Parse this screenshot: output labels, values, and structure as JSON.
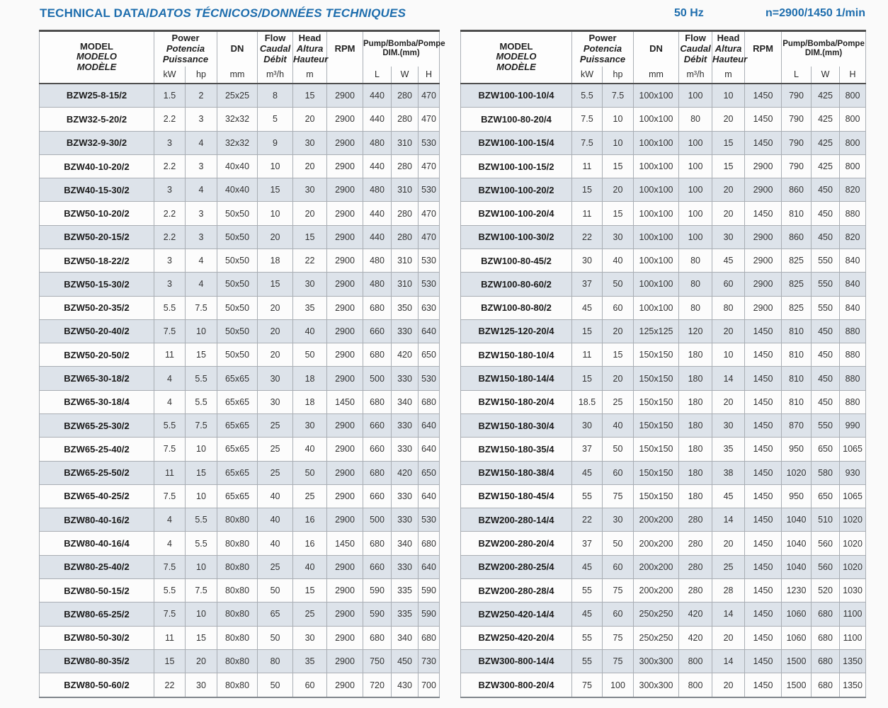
{
  "page": {
    "title_plain": "TECHNICAL DATA/",
    "title_italic": "DATOS TÉCNICOS/DONNÉES TECHNIQUES",
    "frequency": "50 Hz",
    "rotation": "n=2900/1450 1/min"
  },
  "colors": {
    "accent_blue": "#1d6dad",
    "row_shaded": "#dde3ea",
    "row_plain": "#fcfcfc",
    "border_dark": "#4f4f4f",
    "border_light": "#abb0b6"
  },
  "header": {
    "model": {
      "en": "MODEL",
      "es": "MODELO",
      "fr": "MODÈLE"
    },
    "power": {
      "en": "Power",
      "es": "Potencia",
      "fr": "Puissance",
      "unit_kw": "kW",
      "unit_hp": "hp"
    },
    "dn": {
      "label": "DN",
      "unit": "mm"
    },
    "flow": {
      "en": "Flow",
      "es": "Caudal",
      "fr": "Débit",
      "unit": "m³/h"
    },
    "head": {
      "en": "Head",
      "es": "Altura",
      "fr": "Hauteur",
      "unit": "m"
    },
    "rpm": {
      "label": "RPM"
    },
    "dim": {
      "en": "Pump/",
      "es_fr": "Bomba/Pompe",
      "line2": "DIM.(mm)",
      "unit_l": "L",
      "unit_w": "W",
      "unit_h": "H"
    }
  },
  "columns": [
    "MODEL",
    "Power kW",
    "Power hp",
    "DN mm",
    "Flow m³/h",
    "Head m",
    "RPM",
    "L mm",
    "W mm",
    "H mm"
  ],
  "tables": [
    {
      "rows": [
        [
          "BZW25-8-15/2",
          "1.5",
          "2",
          "25x25",
          "8",
          "15",
          "2900",
          "440",
          "280",
          "470"
        ],
        [
          "BZW32-5-20/2",
          "2.2",
          "3",
          "32x32",
          "5",
          "20",
          "2900",
          "440",
          "280",
          "470"
        ],
        [
          "BZW32-9-30/2",
          "3",
          "4",
          "32x32",
          "9",
          "30",
          "2900",
          "480",
          "310",
          "530"
        ],
        [
          "BZW40-10-20/2",
          "2.2",
          "3",
          "40x40",
          "10",
          "20",
          "2900",
          "440",
          "280",
          "470"
        ],
        [
          "BZW40-15-30/2",
          "3",
          "4",
          "40x40",
          "15",
          "30",
          "2900",
          "480",
          "310",
          "530"
        ],
        [
          "BZW50-10-20/2",
          "2.2",
          "3",
          "50x50",
          "10",
          "20",
          "2900",
          "440",
          "280",
          "470"
        ],
        [
          "BZW50-20-15/2",
          "2.2",
          "3",
          "50x50",
          "20",
          "15",
          "2900",
          "440",
          "280",
          "470"
        ],
        [
          "BZW50-18-22/2",
          "3",
          "4",
          "50x50",
          "18",
          "22",
          "2900",
          "480",
          "310",
          "530"
        ],
        [
          "BZW50-15-30/2",
          "3",
          "4",
          "50x50",
          "15",
          "30",
          "2900",
          "480",
          "310",
          "530"
        ],
        [
          "BZW50-20-35/2",
          "5.5",
          "7.5",
          "50x50",
          "20",
          "35",
          "2900",
          "680",
          "350",
          "630"
        ],
        [
          "BZW50-20-40/2",
          "7.5",
          "10",
          "50x50",
          "20",
          "40",
          "2900",
          "660",
          "330",
          "640"
        ],
        [
          "BZW50-20-50/2",
          "11",
          "15",
          "50x50",
          "20",
          "50",
          "2900",
          "680",
          "420",
          "650"
        ],
        [
          "BZW65-30-18/2",
          "4",
          "5.5",
          "65x65",
          "30",
          "18",
          "2900",
          "500",
          "330",
          "530"
        ],
        [
          "BZW65-30-18/4",
          "4",
          "5.5",
          "65x65",
          "30",
          "18",
          "1450",
          "680",
          "340",
          "680"
        ],
        [
          "BZW65-25-30/2",
          "5.5",
          "7.5",
          "65x65",
          "25",
          "30",
          "2900",
          "660",
          "330",
          "640"
        ],
        [
          "BZW65-25-40/2",
          "7.5",
          "10",
          "65x65",
          "25",
          "40",
          "2900",
          "660",
          "330",
          "640"
        ],
        [
          "BZW65-25-50/2",
          "11",
          "15",
          "65x65",
          "25",
          "50",
          "2900",
          "680",
          "420",
          "650"
        ],
        [
          "BZW65-40-25/2",
          "7.5",
          "10",
          "65x65",
          "40",
          "25",
          "2900",
          "660",
          "330",
          "640"
        ],
        [
          "BZW80-40-16/2",
          "4",
          "5.5",
          "80x80",
          "40",
          "16",
          "2900",
          "500",
          "330",
          "530"
        ],
        [
          "BZW80-40-16/4",
          "4",
          "5.5",
          "80x80",
          "40",
          "16",
          "1450",
          "680",
          "340",
          "680"
        ],
        [
          "BZW80-25-40/2",
          "7.5",
          "10",
          "80x80",
          "25",
          "40",
          "2900",
          "660",
          "330",
          "640"
        ],
        [
          "BZW80-50-15/2",
          "5.5",
          "7.5",
          "80x80",
          "50",
          "15",
          "2900",
          "590",
          "335",
          "590"
        ],
        [
          "BZW80-65-25/2",
          "7.5",
          "10",
          "80x80",
          "65",
          "25",
          "2900",
          "590",
          "335",
          "590"
        ],
        [
          "BZW80-50-30/2",
          "11",
          "15",
          "80x80",
          "50",
          "30",
          "2900",
          "680",
          "340",
          "680"
        ],
        [
          "BZW80-80-35/2",
          "15",
          "20",
          "80x80",
          "80",
          "35",
          "2900",
          "750",
          "450",
          "730"
        ],
        [
          "BZW80-50-60/2",
          "22",
          "30",
          "80x80",
          "50",
          "60",
          "2900",
          "720",
          "430",
          "700"
        ]
      ]
    },
    {
      "rows": [
        [
          "BZW100-100-10/4",
          "5.5",
          "7.5",
          "100x100",
          "100",
          "10",
          "1450",
          "790",
          "425",
          "800"
        ],
        [
          "BZW100-80-20/4",
          "7.5",
          "10",
          "100x100",
          "80",
          "20",
          "1450",
          "790",
          "425",
          "800"
        ],
        [
          "BZW100-100-15/4",
          "7.5",
          "10",
          "100x100",
          "100",
          "15",
          "1450",
          "790",
          "425",
          "800"
        ],
        [
          "BZW100-100-15/2",
          "11",
          "15",
          "100x100",
          "100",
          "15",
          "2900",
          "790",
          "425",
          "800"
        ],
        [
          "BZW100-100-20/2",
          "15",
          "20",
          "100x100",
          "100",
          "20",
          "2900",
          "860",
          "450",
          "820"
        ],
        [
          "BZW100-100-20/4",
          "11",
          "15",
          "100x100",
          "100",
          "20",
          "1450",
          "810",
          "450",
          "880"
        ],
        [
          "BZW100-100-30/2",
          "22",
          "30",
          "100x100",
          "100",
          "30",
          "2900",
          "860",
          "450",
          "820"
        ],
        [
          "BZW100-80-45/2",
          "30",
          "40",
          "100x100",
          "80",
          "45",
          "2900",
          "825",
          "550",
          "840"
        ],
        [
          "BZW100-80-60/2",
          "37",
          "50",
          "100x100",
          "80",
          "60",
          "2900",
          "825",
          "550",
          "840"
        ],
        [
          "BZW100-80-80/2",
          "45",
          "60",
          "100x100",
          "80",
          "80",
          "2900",
          "825",
          "550",
          "840"
        ],
        [
          "BZW125-120-20/4",
          "15",
          "20",
          "125x125",
          "120",
          "20",
          "1450",
          "810",
          "450",
          "880"
        ],
        [
          "BZW150-180-10/4",
          "11",
          "15",
          "150x150",
          "180",
          "10",
          "1450",
          "810",
          "450",
          "880"
        ],
        [
          "BZW150-180-14/4",
          "15",
          "20",
          "150x150",
          "180",
          "14",
          "1450",
          "810",
          "450",
          "880"
        ],
        [
          "BZW150-180-20/4",
          "18.5",
          "25",
          "150x150",
          "180",
          "20",
          "1450",
          "810",
          "450",
          "880"
        ],
        [
          "BZW150-180-30/4",
          "30",
          "40",
          "150x150",
          "180",
          "30",
          "1450",
          "870",
          "550",
          "990"
        ],
        [
          "BZW150-180-35/4",
          "37",
          "50",
          "150x150",
          "180",
          "35",
          "1450",
          "950",
          "650",
          "1065"
        ],
        [
          "BZW150-180-38/4",
          "45",
          "60",
          "150x150",
          "180",
          "38",
          "1450",
          "1020",
          "580",
          "930"
        ],
        [
          "BZW150-180-45/4",
          "55",
          "75",
          "150x150",
          "180",
          "45",
          "1450",
          "950",
          "650",
          "1065"
        ],
        [
          "BZW200-280-14/4",
          "22",
          "30",
          "200x200",
          "280",
          "14",
          "1450",
          "1040",
          "510",
          "1020"
        ],
        [
          "BZW200-280-20/4",
          "37",
          "50",
          "200x200",
          "280",
          "20",
          "1450",
          "1040",
          "560",
          "1020"
        ],
        [
          "BZW200-280-25/4",
          "45",
          "60",
          "200x200",
          "280",
          "25",
          "1450",
          "1040",
          "560",
          "1020"
        ],
        [
          "BZW200-280-28/4",
          "55",
          "75",
          "200x200",
          "280",
          "28",
          "1450",
          "1230",
          "520",
          "1030"
        ],
        [
          "BZW250-420-14/4",
          "45",
          "60",
          "250x250",
          "420",
          "14",
          "1450",
          "1060",
          "680",
          "1100"
        ],
        [
          "BZW250-420-20/4",
          "55",
          "75",
          "250x250",
          "420",
          "20",
          "1450",
          "1060",
          "680",
          "1100"
        ],
        [
          "BZW300-800-14/4",
          "55",
          "75",
          "300x300",
          "800",
          "14",
          "1450",
          "1500",
          "680",
          "1350"
        ],
        [
          "BZW300-800-20/4",
          "75",
          "100",
          "300x300",
          "800",
          "20",
          "1450",
          "1500",
          "680",
          "1350"
        ]
      ]
    }
  ]
}
